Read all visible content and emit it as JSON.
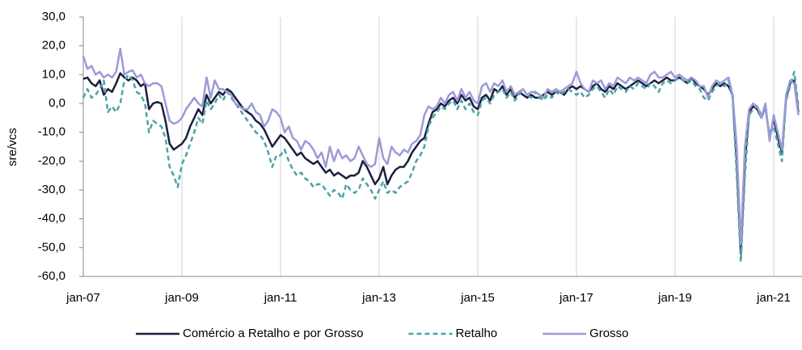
{
  "chart_data": {
    "type": "line",
    "y_label": "sre/vcs",
    "categories": [
      "jan-07",
      null,
      null,
      null,
      null,
      null,
      null,
      null,
      null,
      null,
      null,
      null,
      null,
      null,
      null,
      null,
      null,
      null,
      null,
      null,
      null,
      null,
      null,
      null,
      "jan-09",
      null,
      null,
      null,
      null,
      null,
      null,
      null,
      null,
      null,
      null,
      null,
      null,
      null,
      null,
      null,
      null,
      null,
      null,
      null,
      null,
      null,
      null,
      null,
      "jan-11",
      null,
      null,
      null,
      null,
      null,
      null,
      null,
      null,
      null,
      null,
      null,
      null,
      null,
      null,
      null,
      null,
      null,
      null,
      null,
      null,
      null,
      null,
      null,
      "jan-13",
      null,
      null,
      null,
      null,
      null,
      null,
      null,
      null,
      null,
      null,
      null,
      null,
      null,
      null,
      null,
      null,
      null,
      null,
      null,
      null,
      null,
      null,
      null,
      "jan-15",
      null,
      null,
      null,
      null,
      null,
      null,
      null,
      null,
      null,
      null,
      null,
      null,
      null,
      null,
      null,
      null,
      null,
      null,
      null,
      null,
      null,
      null,
      null,
      "jan-17",
      null,
      null,
      null,
      null,
      null,
      null,
      null,
      null,
      null,
      null,
      null,
      null,
      null,
      null,
      null,
      null,
      null,
      null,
      null,
      null,
      null,
      null,
      null,
      "jan-19",
      null,
      null,
      null,
      null,
      null,
      null,
      null,
      null,
      null,
      null,
      null,
      null,
      null,
      null,
      null,
      null,
      null,
      null,
      null,
      null,
      null,
      null,
      null,
      "jan-21",
      null,
      null,
      null,
      null,
      null,
      null
    ],
    "series": [
      {
        "name": "Comércio a Retalho e por Grosso",
        "color": "#1b1f3f",
        "dash": false,
        "values": [
          8.5,
          9,
          7,
          6,
          8,
          3,
          5,
          4,
          7,
          10.5,
          9,
          8,
          9,
          8,
          6,
          7,
          -2,
          0,
          0.5,
          0,
          -6,
          -14,
          -16,
          -15,
          -14,
          -12,
          -8,
          -5,
          -2,
          -4,
          3,
          0,
          2,
          4,
          3,
          5,
          4,
          2,
          0,
          -2,
          -3,
          -4,
          -6,
          -7,
          -9,
          -12,
          -15,
          -13,
          -11,
          -12,
          -14,
          -16,
          -18,
          -17,
          -19,
          -20,
          -21,
          -20,
          -22,
          -24,
          -23,
          -25,
          -24,
          -25,
          -26,
          -25,
          -25,
          -24,
          -20,
          -22,
          -25,
          -28,
          -26,
          -22,
          -28,
          -25,
          -23,
          -22,
          -22,
          -20,
          -17,
          -15,
          -13,
          -12,
          -7,
          -3,
          -2,
          0,
          -1,
          1,
          2,
          0,
          3,
          1,
          2,
          -1,
          -2,
          2,
          3,
          1,
          5,
          4,
          6,
          3,
          5,
          2,
          4,
          3,
          2,
          3,
          2,
          2,
          3,
          4,
          3,
          4,
          4,
          3,
          5,
          6,
          5,
          6,
          5,
          4,
          6,
          7,
          5,
          4,
          6,
          5,
          7,
          6,
          5,
          6,
          7,
          8,
          7,
          6,
          7,
          8,
          7,
          8,
          9,
          8,
          8,
          9,
          8,
          7,
          9,
          7,
          6,
          5,
          3,
          5,
          7,
          6,
          7,
          6,
          3,
          -20,
          -52,
          -20,
          -3,
          -1,
          -2,
          -5,
          -1,
          -12,
          -5,
          -12,
          -17,
          2,
          7,
          8,
          -3
        ]
      },
      {
        "name": "Retalho",
        "color": "#4ba3a6",
        "dash": true,
        "values": [
          2,
          5,
          2,
          3,
          5,
          8,
          -3,
          -1,
          -3,
          0,
          8,
          10,
          8,
          4,
          3,
          0,
          -10,
          -6,
          -7,
          -8,
          -12,
          -22,
          -25,
          -29,
          -21,
          -18,
          -14,
          -10,
          -5,
          -7,
          1,
          -2,
          0,
          3,
          1,
          4,
          2,
          0,
          -2,
          -4,
          -6,
          -8,
          -10,
          -11,
          -13,
          -17,
          -22,
          -18,
          -18,
          -16,
          -20,
          -23,
          -25,
          -24,
          -26,
          -27,
          -29,
          -28,
          -28,
          -30,
          -32,
          -30,
          -31,
          -33,
          -28,
          -30,
          -31,
          -30,
          -26,
          -28,
          -30,
          -33,
          -30,
          -27,
          -31,
          -30,
          -31,
          -29,
          -28,
          -27,
          -24,
          -20,
          -18,
          -15,
          -8,
          -5,
          -3,
          -1,
          -2,
          0,
          1,
          -2,
          1,
          -2,
          0,
          -3,
          -4,
          1,
          2,
          0,
          3,
          4,
          5,
          2,
          4,
          1,
          3,
          5,
          3,
          2,
          4,
          2,
          1,
          3,
          2,
          4,
          3,
          4,
          5,
          4,
          3,
          4,
          2,
          3,
          5,
          6,
          4,
          2,
          5,
          3,
          6,
          5,
          4,
          6,
          5,
          7,
          6,
          5,
          7,
          6,
          4,
          7,
          8,
          7,
          8,
          9,
          8,
          7,
          8,
          6,
          5,
          2,
          1,
          4,
          6,
          7,
          6,
          8,
          2,
          -25,
          -55,
          -25,
          -4,
          -2,
          -1,
          -4,
          -2,
          -11,
          -8,
          -14,
          -20,
          1,
          6,
          11,
          -1
        ]
      },
      {
        "name": "Grosso",
        "color": "#9d9ad8",
        "dash": false,
        "values": [
          16.5,
          12,
          13,
          10,
          11,
          9,
          10,
          9,
          11,
          19,
          10,
          11,
          11.5,
          9,
          10,
          7,
          6,
          7,
          7,
          6,
          0,
          -6,
          -7,
          -6.5,
          -5,
          -2,
          0,
          2,
          0,
          -1,
          9,
          2,
          8,
          5,
          5,
          4,
          3,
          0,
          -1,
          -2,
          -2,
          0,
          -3,
          -4,
          -8,
          -6,
          -2,
          -3,
          -5,
          -10,
          -8,
          -12,
          -13,
          -16,
          -13,
          -14,
          -16,
          -19,
          -17,
          -22,
          -15,
          -20,
          -16,
          -19,
          -18,
          -20,
          -19,
          -15,
          -18,
          -21,
          -22,
          -21,
          -12,
          -19,
          -21,
          -15,
          -17,
          -18,
          -16,
          -17,
          -14,
          -13,
          -11,
          -4,
          -1,
          -2,
          -1,
          2,
          0,
          3,
          4,
          1,
          5,
          2,
          4,
          1,
          0,
          6,
          7,
          4,
          7,
          6,
          8,
          4,
          6,
          3,
          4,
          5,
          3,
          4,
          4,
          3,
          2,
          5,
          4,
          5,
          4,
          5,
          6,
          7,
          11,
          7,
          5,
          4,
          8,
          7,
          8,
          5,
          7,
          6,
          9,
          8,
          7,
          9,
          8,
          9,
          8,
          7,
          10,
          11,
          9,
          9,
          10,
          11,
          9,
          10,
          9,
          8,
          9,
          8,
          6,
          6,
          2,
          6,
          8,
          7,
          8,
          9,
          3,
          -15,
          -49,
          -15,
          -2,
          0,
          -1,
          -5,
          0,
          -13,
          -4,
          -10,
          -16,
          3,
          8,
          7,
          -4
        ]
      }
    ],
    "ylim": [
      -60,
      30
    ],
    "yticks": [
      {
        "value": -60,
        "label": "-60,0"
      },
      {
        "value": -50,
        "label": "-50,0"
      },
      {
        "value": -40,
        "label": "-40,0"
      },
      {
        "value": -30,
        "label": "-30,0"
      },
      {
        "value": -20,
        "label": "-20,0"
      },
      {
        "value": -10,
        "label": "-10,0"
      },
      {
        "value": 0,
        "label": "0,0"
      },
      {
        "value": 10,
        "label": "10,0"
      },
      {
        "value": 20,
        "label": "20,0"
      },
      {
        "value": 30,
        "label": "30,0"
      }
    ],
    "grid": "x",
    "legend": "bottom"
  }
}
